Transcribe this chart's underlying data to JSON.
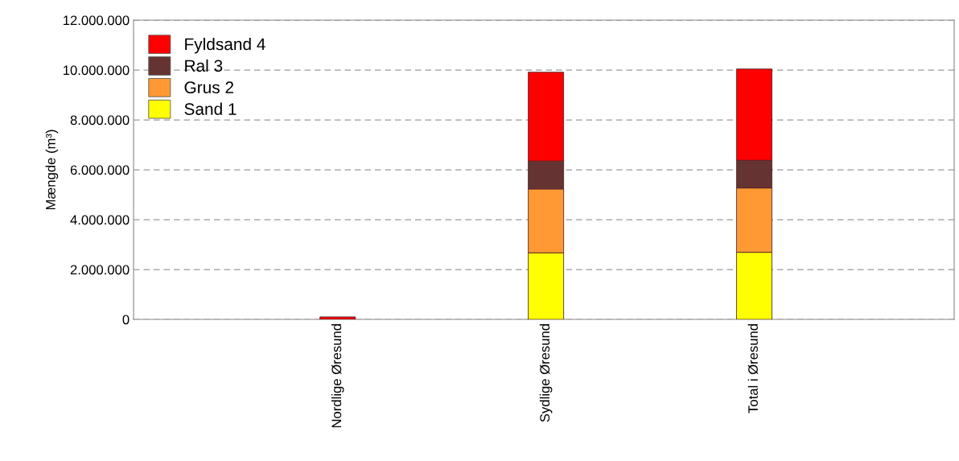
{
  "chart_data": {
    "type": "bar",
    "stacked": true,
    "ylabel": "Mængde (m³)",
    "categories": [
      "Nordlige Øresund",
      "Sydlige Øresund",
      "Total i Øresund"
    ],
    "series": [
      {
        "name": "Sand 1",
        "color": "#ffff00",
        "values": [
          0,
          2670000,
          2690000
        ]
      },
      {
        "name": "Grus 2",
        "color": "#ff9933",
        "values": [
          0,
          2560000,
          2580000
        ]
      },
      {
        "name": "Ral 3",
        "color": "#663333",
        "values": [
          0,
          1120000,
          1110000
        ]
      },
      {
        "name": "Fyldsand 4",
        "color": "#ff0000",
        "values": [
          100000,
          3560000,
          3660000
        ]
      }
    ],
    "ylim": [
      0,
      12000000
    ],
    "yticks": [
      {
        "value": 0,
        "label": "0"
      },
      {
        "value": 2000000,
        "label": "2.000.000"
      },
      {
        "value": 4000000,
        "label": "4.000.000"
      },
      {
        "value": 6000000,
        "label": "6.000.000"
      },
      {
        "value": 8000000,
        "label": "8.000.000"
      },
      {
        "value": 10000000,
        "label": "10.000.000"
      },
      {
        "value": 12000000,
        "label": "12.000.000"
      }
    ],
    "grid": "y",
    "legend": "top left"
  }
}
